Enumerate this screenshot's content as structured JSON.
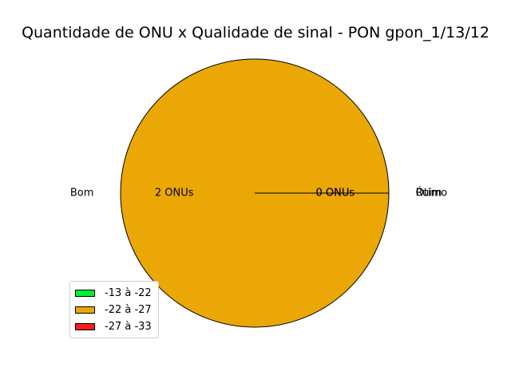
{
  "chart_data": {
    "type": "pie",
    "title": "Quantidade de ONU x Qualidade de sinal - PON gpon_1/13/12",
    "slices": [
      {
        "label": "Ótimo",
        "value": 0,
        "value_label": "0 ONUs",
        "color": "#00ee33"
      },
      {
        "label": "Bom",
        "value": 2,
        "value_label": "2 ONUs",
        "color": "#eba705"
      },
      {
        "label": "Ruim",
        "value": 0,
        "value_label": "0 ONUs",
        "color": "#ff1a1a"
      }
    ],
    "legend": {
      "placement": "lower-left",
      "entries": [
        "-13 à -22",
        "-22 à -27",
        "-27 à -33"
      ]
    }
  }
}
